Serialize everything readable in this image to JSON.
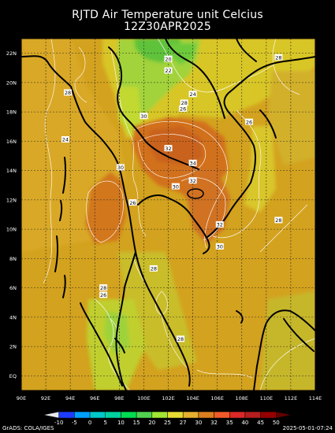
{
  "title_line1": "RJTD Air Temperature unit Celcius",
  "title_line2": "12Z30APR2025",
  "lat_labels": [
    "22N",
    "20N",
    "18N",
    "16N",
    "14N",
    "12N",
    "10N",
    "8N",
    "6N",
    "4N",
    "2N",
    "EQ"
  ],
  "lon_labels": [
    "90E",
    "92E",
    "94E",
    "96E",
    "98E",
    "100E",
    "102E",
    "104E",
    "106E",
    "108E",
    "110E",
    "112E",
    "114E"
  ],
  "lat_values": [
    22,
    20,
    18,
    16,
    14,
    12,
    10,
    8,
    6,
    4,
    2,
    0
  ],
  "lon_values": [
    90,
    92,
    94,
    96,
    98,
    100,
    102,
    104,
    106,
    108,
    110,
    112,
    114
  ],
  "contour_labels": [
    {
      "text": "20",
      "lon": 102.0,
      "lat": 21.6
    },
    {
      "text": "22",
      "lon": 102.0,
      "lat": 20.8
    },
    {
      "text": "28",
      "lon": 111.0,
      "lat": 21.7
    },
    {
      "text": "28",
      "lon": 93.8,
      "lat": 19.3
    },
    {
      "text": "24",
      "lon": 104.0,
      "lat": 19.2
    },
    {
      "text": "28",
      "lon": 103.3,
      "lat": 18.6
    },
    {
      "text": "26",
      "lon": 103.2,
      "lat": 18.2
    },
    {
      "text": "30",
      "lon": 100.0,
      "lat": 17.7
    },
    {
      "text": "26",
      "lon": 108.6,
      "lat": 17.3
    },
    {
      "text": "24",
      "lon": 93.6,
      "lat": 16.1
    },
    {
      "text": "32",
      "lon": 102.0,
      "lat": 15.5
    },
    {
      "text": "34",
      "lon": 104.0,
      "lat": 14.5
    },
    {
      "text": "30",
      "lon": 98.1,
      "lat": 14.2
    },
    {
      "text": "32",
      "lon": 104.0,
      "lat": 13.3
    },
    {
      "text": "30",
      "lon": 102.6,
      "lat": 12.9
    },
    {
      "text": "26",
      "lon": 99.1,
      "lat": 11.8
    },
    {
      "text": "28",
      "lon": 111.0,
      "lat": 10.6
    },
    {
      "text": "32",
      "lon": 106.2,
      "lat": 10.3
    },
    {
      "text": "30",
      "lon": 106.2,
      "lat": 8.8
    },
    {
      "text": "28",
      "lon": 100.8,
      "lat": 7.3
    },
    {
      "text": "28",
      "lon": 96.7,
      "lat": 6.0
    },
    {
      "text": "26",
      "lon": 96.7,
      "lat": 5.5
    },
    {
      "text": "28",
      "lon": 103.0,
      "lat": 2.5
    }
  ],
  "colorbar": {
    "labels": [
      "-10",
      "-5",
      "0",
      "5",
      "10",
      "15",
      "20",
      "25",
      "27",
      "30",
      "32",
      "35",
      "40",
      "45",
      "50"
    ],
    "colors": [
      "#e8e8e8",
      "#1e3cff",
      "#00a0ff",
      "#00c8c8",
      "#00d2a0",
      "#00dc50",
      "#50d250",
      "#a0e632",
      "#e6dc32",
      "#e6af2d",
      "#dc7d1e",
      "#f05a28",
      "#dc2828",
      "#b41e1e",
      "#960000",
      "#640000"
    ]
  },
  "credit_left": "GrADS: COLA/IGES",
  "credit_right": "2025-05-01-07:24"
}
